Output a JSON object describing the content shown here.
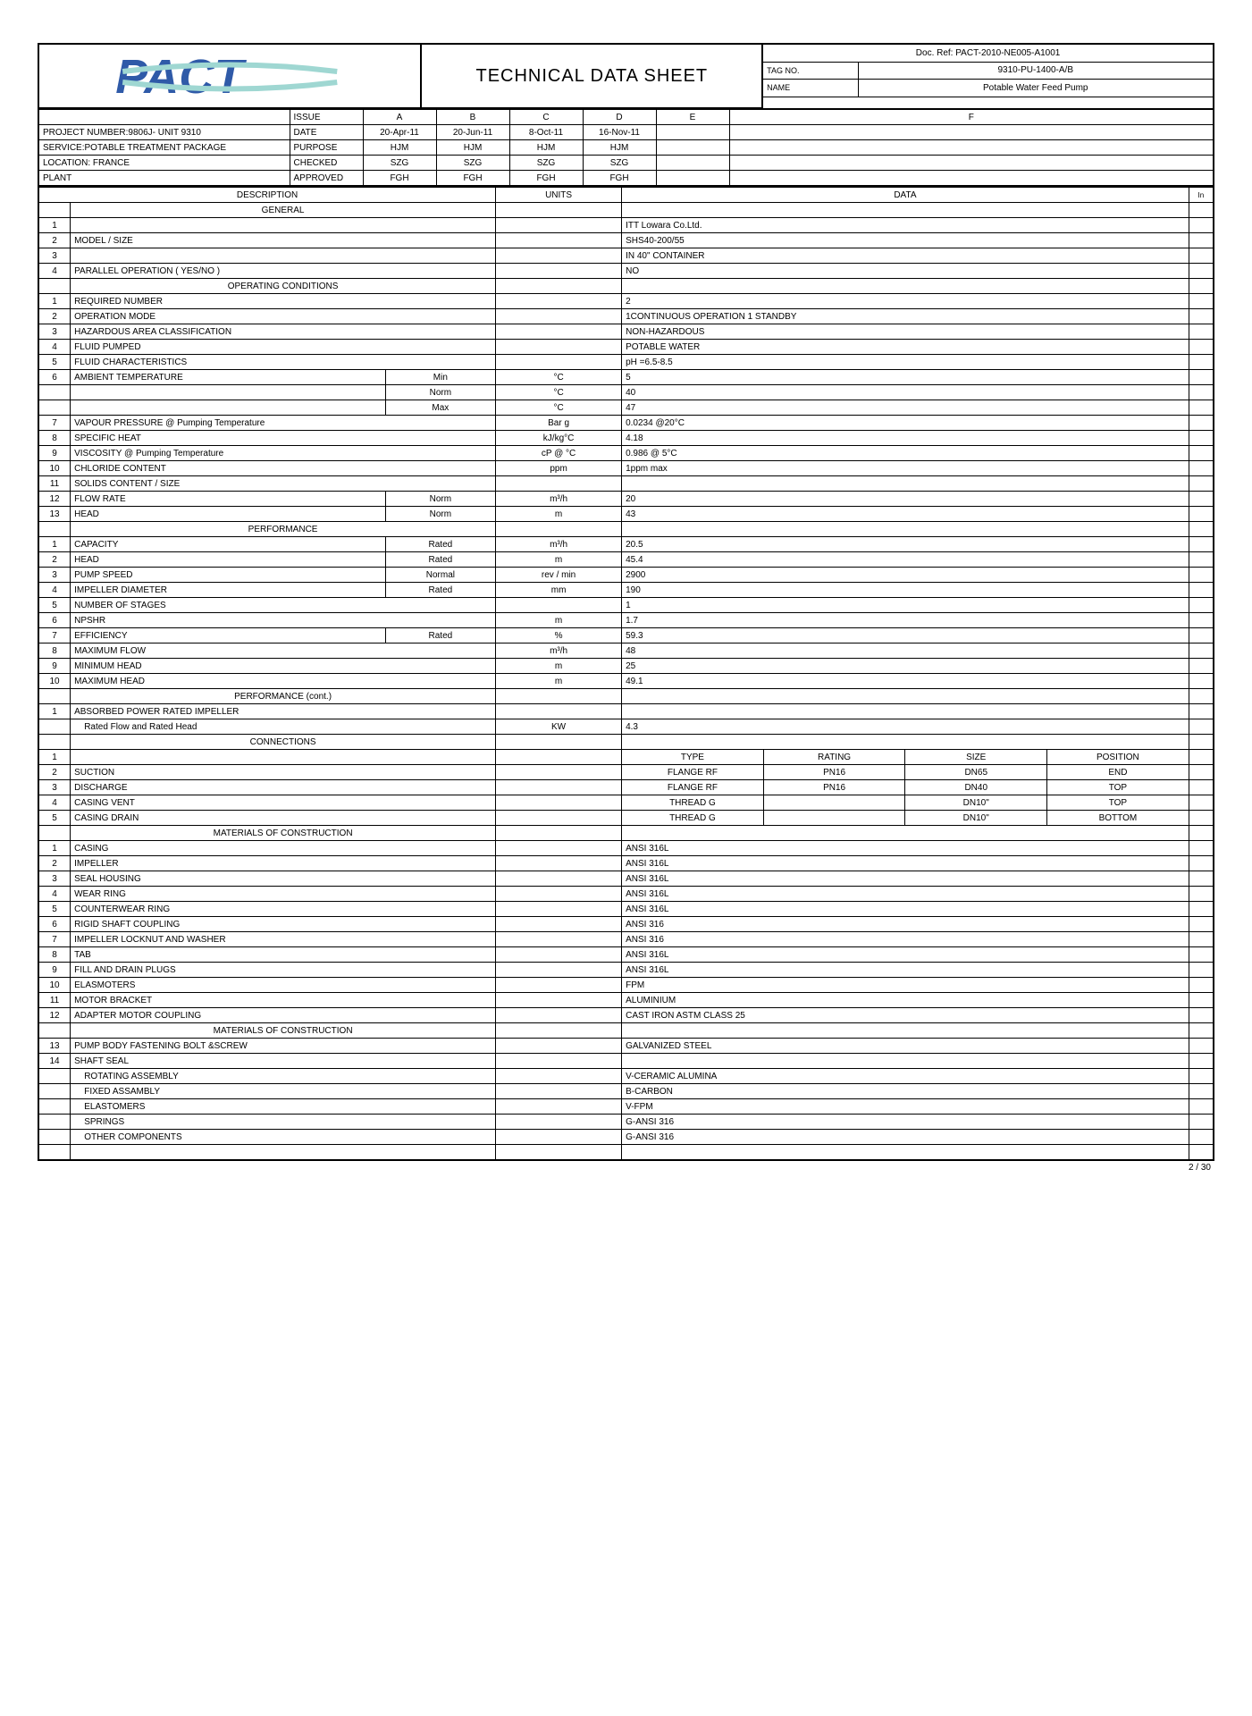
{
  "header": {
    "title": "TECHNICAL DATA SHEET",
    "doc_ref_label": "Doc. Ref:",
    "doc_ref": "PACT-2010-NE005-A1001",
    "tag_no_label": "TAG NO.",
    "tag_no": "9310-PU-1400-A/B",
    "name_label": "NAME",
    "name": "Potable Water Feed Pump",
    "logo_text": "PACT",
    "logo_color": "#2f5aa8",
    "logo_accent": "#9fd7d2"
  },
  "issue_block": {
    "labels": {
      "issue": "ISSUE",
      "date": "DATE",
      "purpose": "PURPOSE",
      "checked": "CHECKED",
      "approved": "APPROVED"
    },
    "project": "PROJECT NUMBER:9806J- UNIT 9310",
    "service": "SERVICE:POTABLE TREATMENT PACKAGE",
    "location": "LOCATION: FRANCE",
    "plant": "PLANT",
    "cols": [
      "A",
      "B",
      "C",
      "D",
      "E",
      "F"
    ],
    "date": [
      "20-Apr-11",
      "20-Jun-11",
      "8-Oct-11",
      "16-Nov-11",
      "",
      ""
    ],
    "purpose": [
      "HJM",
      "HJM",
      "HJM",
      "HJM",
      "",
      ""
    ],
    "checked": [
      "SZG",
      "SZG",
      "SZG",
      "SZG",
      "",
      ""
    ],
    "approved": [
      "FGH",
      "FGH",
      "FGH",
      "FGH",
      "",
      ""
    ]
  },
  "labels": {
    "description": "DESCRIPTION",
    "units": "UNITS",
    "data": "DATA",
    "in": "In"
  },
  "sections": {
    "general": "GENERAL",
    "operating": "OPERATING CONDITIONS",
    "performance": "PERFORMANCE",
    "performance_cont": "PERFORMANCE (cont.)",
    "connections": "CONNECTIONS",
    "moc": "MATERIALS OF CONSTRUCTION",
    "moc2": "MATERIALS OF CONSTRUCTION"
  },
  "general": [
    {
      "n": "1",
      "d": "",
      "u": "",
      "v": "ITT Lowara Co.Ltd."
    },
    {
      "n": "2",
      "d": "MODEL / SIZE",
      "u": "",
      "v": "SHS40-200/55"
    },
    {
      "n": "3",
      "d": "",
      "u": "",
      "v": "IN 40\" CONTAINER"
    },
    {
      "n": "4",
      "d": "PARALLEL OPERATION ( YES/NO )",
      "u": "",
      "v": "NO"
    }
  ],
  "operating": [
    {
      "n": "1",
      "d": "REQUIRED NUMBER",
      "u": "",
      "v": "2"
    },
    {
      "n": "2",
      "d": "OPERATION MODE",
      "u": "",
      "v": "1CONTINUOUS OPERATION 1 STANDBY"
    },
    {
      "n": "3",
      "d": "HAZARDOUS AREA CLASSIFICATION",
      "u": "",
      "v": "NON-HAZARDOUS"
    },
    {
      "n": "4",
      "d": "FLUID PUMPED",
      "u": "",
      "v": "POTABLE WATER"
    },
    {
      "n": "5",
      "d": "FLUID CHARACTERISTICS",
      "u": "",
      "v": "pH =6.5-8.5"
    },
    {
      "n": "6",
      "d": "AMBIENT TEMPERATURE",
      "sub": "Min",
      "u": "°C",
      "v": "5"
    },
    {
      "n": "",
      "d": "",
      "sub": "Norm",
      "u": "°C",
      "v": "40"
    },
    {
      "n": "",
      "d": "",
      "sub": "Max",
      "u": "°C",
      "v": "47"
    },
    {
      "n": "7",
      "d": "VAPOUR PRESSURE @ Pumping Temperature",
      "u": "Bar g",
      "v": "0.0234 @20°C"
    },
    {
      "n": "8",
      "d": "SPECIFIC HEAT",
      "u": "kJ/kg°C",
      "v": "4.18"
    },
    {
      "n": "9",
      "d": "VISCOSITY @ Pumping Temperature",
      "u": "cP @ °C",
      "v": "0.986 @ 5°C"
    },
    {
      "n": "10",
      "d": "CHLORIDE CONTENT",
      "u": "ppm",
      "v": "1ppm max"
    },
    {
      "n": "11",
      "d": "SOLIDS CONTENT / SIZE",
      "u": "",
      "v": ""
    },
    {
      "n": "12",
      "d": "FLOW RATE",
      "sub": "Norm",
      "u": "m³/h",
      "v": "20"
    },
    {
      "n": "13",
      "d": "HEAD",
      "sub": "Norm",
      "u": "m",
      "v": "43"
    }
  ],
  "performance": [
    {
      "n": "1",
      "d": "CAPACITY",
      "sub": "Rated",
      "u": "m³/h",
      "v": "20.5"
    },
    {
      "n": "2",
      "d": "HEAD",
      "sub": "Rated",
      "u": "m",
      "v": "45.4"
    },
    {
      "n": "3",
      "d": "PUMP SPEED",
      "sub": "Normal",
      "u": "rev / min",
      "v": "2900"
    },
    {
      "n": "4",
      "d": "IMPELLER DIAMETER",
      "sub": "Rated",
      "u": "mm",
      "v": "190"
    },
    {
      "n": "5",
      "d": "NUMBER OF STAGES",
      "u": "",
      "v": "1"
    },
    {
      "n": "6",
      "d": "NPSHR",
      "u": "m",
      "v": "1.7"
    },
    {
      "n": "7",
      "d": "EFFICIENCY",
      "sub": "Rated",
      "u": "%",
      "v": "59.3"
    },
    {
      "n": "8",
      "d": "MAXIMUM FLOW",
      "u": "m³/h",
      "v": "48"
    },
    {
      "n": "9",
      "d": "MINIMUM HEAD",
      "u": "m",
      "v": "25"
    },
    {
      "n": "10",
      "d": "MAXIMUM HEAD",
      "u": "m",
      "v": "49.1"
    }
  ],
  "perf_cont": [
    {
      "n": "1",
      "d": "ABSORBED POWER RATED IMPELLER",
      "u": "",
      "v": ""
    },
    {
      "n": "",
      "d": "Rated Flow and Rated Head",
      "u": "KW",
      "v": "4.3",
      "indent": true
    }
  ],
  "conn_head": {
    "type": "TYPE",
    "rating": "RATING",
    "size": "SIZE",
    "position": "POSITION"
  },
  "connections": [
    {
      "n": "2",
      "d": "SUCTION",
      "type": "FLANGE RF",
      "rating": "PN16",
      "size": "DN65",
      "position": "END"
    },
    {
      "n": "3",
      "d": "DISCHARGE",
      "type": "FLANGE RF",
      "rating": "PN16",
      "size": "DN40",
      "position": "TOP"
    },
    {
      "n": "4",
      "d": "CASING VENT",
      "type": "THREAD G",
      "rating": "",
      "size": "DN10\"",
      "position": "TOP"
    },
    {
      "n": "5",
      "d": "CASING DRAIN",
      "type": "THREAD G",
      "rating": "",
      "size": "DN10\"",
      "position": "BOTTOM"
    }
  ],
  "moc": [
    {
      "n": "1",
      "d": "CASING",
      "v": "ANSI 316L"
    },
    {
      "n": "2",
      "d": "IMPELLER",
      "v": "ANSI 316L"
    },
    {
      "n": "3",
      "d": "SEAL HOUSING",
      "v": "ANSI 316L"
    },
    {
      "n": "4",
      "d": "WEAR RING",
      "v": "ANSI 316L"
    },
    {
      "n": "5",
      "d": "COUNTERWEAR RING",
      "v": "ANSI 316L"
    },
    {
      "n": "6",
      "d": "RIGID SHAFT COUPLING",
      "v": "ANSI 316"
    },
    {
      "n": "7",
      "d": "IMPELLER LOCKNUT AND WASHER",
      "v": "ANSI 316"
    },
    {
      "n": "8",
      "d": "TAB",
      "v": "ANSI 316L"
    },
    {
      "n": "9",
      "d": "FILL AND DRAIN PLUGS",
      "v": "ANSI 316L"
    },
    {
      "n": "10",
      "d": "ELASMOTERS",
      "v": "FPM"
    },
    {
      "n": "11",
      "d": "MOTOR BRACKET",
      "v": "ALUMINIUM"
    },
    {
      "n": "12",
      "d": "ADAPTER MOTOR COUPLING",
      "v": "CAST IRON ASTM CLASS 25"
    }
  ],
  "moc2": [
    {
      "n": "13",
      "d": "PUMP BODY FASTENING BOLT &SCREW",
      "v": "GALVANIZED STEEL"
    },
    {
      "n": "14",
      "d": "SHAFT SEAL",
      "v": ""
    },
    {
      "n": "",
      "d": "ROTATING ASSEMBLY",
      "v": "V-CERAMIC ALUMINA",
      "indent": true
    },
    {
      "n": "",
      "d": "FIXED ASSAMBLY",
      "v": "B-CARBON",
      "indent": true
    },
    {
      "n": "",
      "d": "ELASTOMERS",
      "v": "V-FPM",
      "indent": true
    },
    {
      "n": "",
      "d": "SPRINGS",
      "v": "G-ANSI 316",
      "indent": true
    },
    {
      "n": "",
      "d": "OTHER COMPONENTS",
      "v": "G-ANSI 316",
      "indent": true
    }
  ],
  "page": "2 / 30"
}
